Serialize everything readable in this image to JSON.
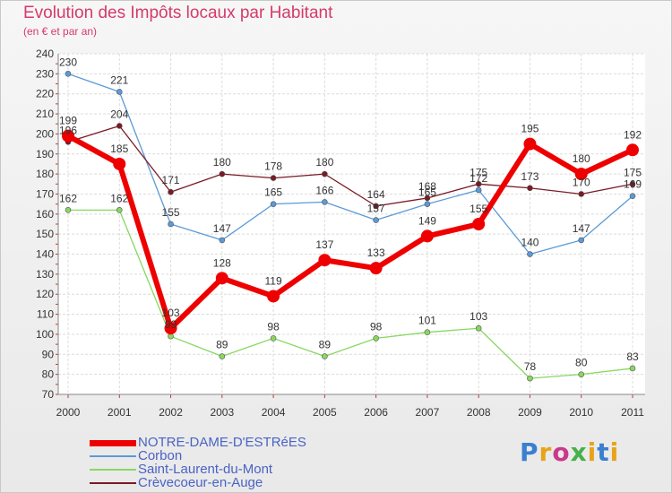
{
  "title": "Evolution des Impôts locaux par Habitant",
  "subtitle": "(en € et par an)",
  "brand": {
    "text": "Proxiti",
    "colors": [
      "#3a7fd0",
      "#e8a318",
      "#c83a8a",
      "#47b048",
      "#e8a318",
      "#3a7fd0",
      "#e8a318"
    ]
  },
  "chart_data": {
    "type": "line",
    "x": [
      "2000",
      "2001",
      "2002",
      "2003",
      "2004",
      "2005",
      "2006",
      "2007",
      "2008",
      "2009",
      "2010",
      "2011"
    ],
    "ylim": [
      70,
      240
    ],
    "yticks": [
      70,
      80,
      90,
      100,
      110,
      120,
      130,
      140,
      150,
      160,
      170,
      180,
      190,
      200,
      210,
      220,
      230,
      240
    ],
    "grid": true,
    "legend_position": "bottom-left",
    "series": [
      {
        "name": "NOTRE-DAME-D'ESTRéES",
        "color": "#ee0000",
        "width": 6,
        "marker": 7,
        "values": [
          199,
          185,
          103,
          128,
          119,
          137,
          133,
          149,
          155,
          195,
          180,
          192
        ]
      },
      {
        "name": "Corbon",
        "color": "#5b9ad6",
        "width": 1.3,
        "marker": 3,
        "values": [
          230,
          221,
          155,
          147,
          165,
          166,
          157,
          165,
          172,
          140,
          147,
          169
        ]
      },
      {
        "name": "Saint-Laurent-du-Mont",
        "color": "#88d860",
        "width": 1.3,
        "marker": 3,
        "values": [
          162,
          162,
          99,
          89,
          98,
          89,
          98,
          101,
          103,
          78,
          80,
          83
        ]
      },
      {
        "name": "Crèvecoeur-en-Auge",
        "color": "#7a1a24",
        "width": 1.3,
        "marker": 3,
        "values": [
          196,
          204,
          171,
          180,
          178,
          180,
          164,
          168,
          175,
          173,
          170,
          175
        ]
      }
    ]
  }
}
